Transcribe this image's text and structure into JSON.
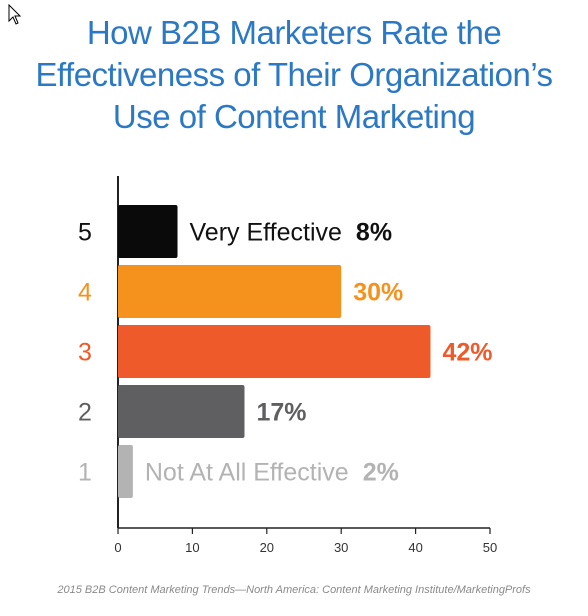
{
  "title_lines": [
    "How B2B Marketers Rate the",
    "Effectiveness of Their Organization’s",
    "Use of Content Marketing"
  ],
  "source": "2015 B2B Content Marketing Trends—North America: Content Marketing Institute/MarketingProfs",
  "chart_data": {
    "type": "bar",
    "orientation": "horizontal",
    "categories": [
      "5",
      "4",
      "3",
      "2",
      "1"
    ],
    "values": [
      8,
      30,
      42,
      17,
      2
    ],
    "value_labels": [
      "8%",
      "30%",
      "42%",
      "17%",
      "2%"
    ],
    "bar_annotations": [
      "Very Effective",
      "",
      "",
      "",
      "Not At All Effective"
    ],
    "colors": [
      "#0a0a0a",
      "#f5921e",
      "#ef5a2a",
      "#5f5f61",
      "#b3b3b3"
    ],
    "label_colors": [
      "#111111",
      "#f5921e",
      "#ef5a2a",
      "#5f5f61",
      "#b3b3b3"
    ],
    "xlim": [
      0,
      50
    ],
    "xticks": [
      0,
      10,
      20,
      30,
      40,
      50
    ],
    "grid": false,
    "title": "How B2B Marketers Rate the Effectiveness of Their Organization’s Use of Content Marketing"
  }
}
